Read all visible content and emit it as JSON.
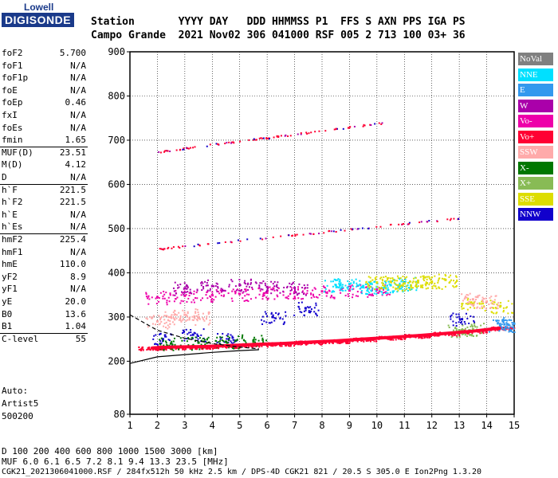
{
  "logo": {
    "top": "Lowell",
    "bottom": "DIGISONDE"
  },
  "header": {
    "line1": "Station       YYYY DAY   DDD HHMMSS P1  FFS S AXN PPS IGA PS",
    "line2": "Campo Grande  2021 Nov02 306 041000 RSF 005 2 713 100 03+ 36"
  },
  "params": [
    {
      "name": "foF2",
      "value": "5.700"
    },
    {
      "name": "foF1",
      "value": "N/A"
    },
    {
      "name": "foF1p",
      "value": "N/A"
    },
    {
      "name": "foE",
      "value": "N/A"
    },
    {
      "name": "foEp",
      "value": "0.46"
    },
    {
      "name": "fxI",
      "value": "N/A"
    },
    {
      "name": "foEs",
      "value": "N/A"
    },
    {
      "name": "fmin",
      "value": "1.65"
    },
    {
      "name": "MUF(D)",
      "value": "23.51"
    },
    {
      "name": "M(D)",
      "value": "4.12"
    },
    {
      "name": "D",
      "value": "N/A"
    },
    {
      "name": "h`F",
      "value": "221.5"
    },
    {
      "name": "h`F2",
      "value": "221.5"
    },
    {
      "name": "h`E",
      "value": "N/A"
    },
    {
      "name": "h`Es",
      "value": "N/A"
    },
    {
      "name": "hmF2",
      "value": "225.4"
    },
    {
      "name": "hmF1",
      "value": "N/A"
    },
    {
      "name": "hmE",
      "value": "110.0"
    },
    {
      "name": "yF2",
      "value": "8.9"
    },
    {
      "name": "yF1",
      "value": "N/A"
    },
    {
      "name": "yE",
      "value": "20.0"
    },
    {
      "name": "B0",
      "value": "13.6"
    },
    {
      "name": "B1",
      "value": "1.04"
    },
    {
      "name": "C-level",
      "value": "55"
    }
  ],
  "auto": {
    "line1": "Auto:",
    "line2": "Artist5",
    "line3": "500200"
  },
  "legend": [
    {
      "label": "NoVal",
      "color": "#808080"
    },
    {
      "label": "NNE",
      "color": "#00e0ff"
    },
    {
      "label": "E",
      "color": "#3399ee"
    },
    {
      "label": "W",
      "color": "#aa00aa"
    },
    {
      "label": "Vo-",
      "color": "#ee00aa"
    },
    {
      "label": "Vo+",
      "color": "#ff0033"
    },
    {
      "label": "SSW",
      "color": "#ffaaaa"
    },
    {
      "label": "X-",
      "color": "#007700"
    },
    {
      "label": "X+",
      "color": "#88bb55"
    },
    {
      "label": "SSE",
      "color": "#dddd00"
    },
    {
      "label": "NNW",
      "color": "#1100cc"
    }
  ],
  "footer": {
    "line1": "D    100  200  400  600  800 1000 1500 3000 [km]",
    "line2": "MUF   6.0  6.1  6.5  7.2  8.1  9.4 13.3 23.5 [MHz]",
    "line3": "CGK21_2021306041000.RSF / 284fx512h 50 kHz 2.5 km / DPS-4D CGK21 821 / 20.5 S 305.0 E Ion2Png 1.3.20"
  },
  "chart_data": {
    "type": "scatter",
    "title": "",
    "xlabel": "",
    "ylabel": "",
    "xlim": [
      1,
      15
    ],
    "ylim": [
      80,
      900
    ],
    "x_ticks": [
      1,
      2,
      3,
      4,
      5,
      6,
      7,
      8,
      9,
      10,
      11,
      12,
      13,
      14,
      15
    ],
    "y_ticks": [
      80,
      200,
      300,
      400,
      500,
      600,
      700,
      800,
      900
    ],
    "series": [
      {
        "name": "Vo+",
        "color": "#ff0033",
        "x": [
          1.8,
          2.5,
          3.5,
          4.5,
          5.5,
          6.5,
          7.5,
          8.5,
          9.5,
          10.5,
          11.5,
          12.5,
          13.5,
          14.5
        ],
        "y": [
          230,
          232,
          233,
          235,
          238,
          240,
          243,
          246,
          250,
          254,
          258,
          263,
          268,
          275
        ]
      },
      {
        "name": "Vo-",
        "color": "#ee00aa",
        "x": [
          2.0,
          3.0,
          4.0,
          5.0,
          6.0,
          7.0,
          8.0,
          9.0,
          10.0
        ],
        "y": [
          345,
          348,
          350,
          352,
          355,
          356,
          358,
          360,
          362
        ]
      },
      {
        "name": "W",
        "color": "#aa00aa",
        "x": [
          3.0,
          4.0,
          5.0,
          6.0,
          7.0
        ],
        "y": [
          365,
          370,
          372,
          368,
          366
        ]
      },
      {
        "name": "NNE",
        "color": "#00e0ff",
        "x": [
          8.5,
          9.0,
          9.5,
          10.0,
          10.5,
          11.0
        ],
        "y": [
          372,
          375,
          370,
          368,
          372,
          376
        ]
      },
      {
        "name": "SSE",
        "color": "#dddd00",
        "x": [
          10.0,
          10.5,
          11.0,
          11.5,
          12.0,
          12.5,
          13.5,
          14.5
        ],
        "y": [
          378,
          380,
          376,
          382,
          380,
          384,
          330,
          325
        ]
      },
      {
        "name": "SSW",
        "color": "#ffaaaa",
        "x": [
          2.0,
          2.5,
          3.0,
          3.5,
          13.5,
          14.0
        ],
        "y": [
          290,
          300,
          305,
          298,
          340,
          335
        ]
      },
      {
        "name": "NNW",
        "color": "#1100cc",
        "x": [
          2.2,
          3.3,
          4.6,
          6.2,
          7.4,
          13.1
        ],
        "y": [
          250,
          260,
          250,
          300,
          320,
          295
        ]
      },
      {
        "name": "E",
        "color": "#3399ee",
        "x": [
          14.5,
          14.8,
          15.0
        ],
        "y": [
          280,
          282,
          285
        ]
      },
      {
        "name": "X-",
        "color": "#007700",
        "x": [
          2.5,
          3.5,
          4.5,
          5.5
        ],
        "y": [
          240,
          242,
          244,
          246
        ]
      },
      {
        "name": "X+",
        "color": "#88bb55",
        "x": [
          13.0,
          13.5
        ],
        "y": [
          270,
          272
        ]
      }
    ],
    "trace2_start": [
      2.0,
      455
    ],
    "trace2_end": [
      13.0,
      525
    ],
    "trace3_start": [
      2.0,
      675
    ],
    "trace3_end": [
      10.2,
      740
    ],
    "profile_curves": [
      {
        "name": "lower",
        "x": [
          1.0,
          2.0,
          3.0,
          4.0,
          5.0,
          5.7
        ],
        "y": [
          195,
          210,
          215,
          220,
          224,
          226
        ]
      },
      {
        "name": "upper-dashed",
        "x": [
          1.0,
          2.0,
          3.0,
          4.0,
          5.0,
          5.7
        ],
        "y": [
          305,
          270,
          252,
          240,
          232,
          228
        ]
      }
    ]
  }
}
